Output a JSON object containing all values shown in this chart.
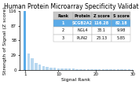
{
  "title": "Human Protein Microarray Specificity Validation",
  "xlabel": "Signal Rank",
  "ylabel": "Strength of Signal (Z score)",
  "ylim": [
    0,
    116
  ],
  "xlim": [
    -0.5,
    30
  ],
  "yticks": [
    0,
    29,
    58,
    87,
    116
  ],
  "xticks": [
    1,
    10,
    20,
    30
  ],
  "bar_values": [
    116.28,
    33.1,
    23.13,
    14.5,
    10.2,
    7.8,
    6.1,
    5.0,
    4.2,
    3.6,
    3.1,
    2.8,
    2.5,
    2.3,
    2.1,
    1.9,
    1.8,
    1.7,
    1.6,
    1.5,
    1.4,
    1.35,
    1.3,
    1.25,
    1.2,
    1.15,
    1.1,
    1.05,
    1.0,
    0.95
  ],
  "highlight_color": "#5aabe8",
  "bar_color": "#b8d8f0",
  "table_data": [
    [
      "Rank",
      "Protein",
      "Z score",
      "S score"
    ],
    [
      "1",
      "SCGB2A2",
      "116.28",
      "82.18"
    ],
    [
      "2",
      "NGL4",
      "33.1",
      "9.98"
    ],
    [
      "3",
      "PLIN2",
      "23.13",
      "5.85"
    ]
  ],
  "table_highlight_color": "#5aabe8",
  "table_header_color": "#c8c8c8",
  "table_row_color": "#ffffff",
  "background_color": "#ffffff",
  "title_fontsize": 5.5,
  "axis_fontsize": 4.5,
  "tick_fontsize": 4.0,
  "table_fontsize": 3.6
}
